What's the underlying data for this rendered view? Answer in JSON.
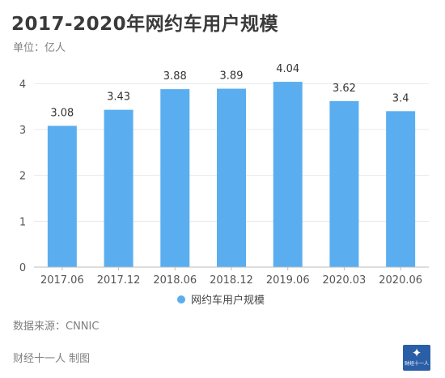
{
  "header": {
    "title": "2017-2020年网约车用户规模",
    "unit": "单位：亿人"
  },
  "footer": {
    "source": "数据来源：CNNIC",
    "credit": "财经十一人 制图",
    "logo_text": "财经十一人"
  },
  "colors": {
    "bar": "#5aaef0",
    "grid": "#e8e8e8",
    "axis": "#bbbbbb"
  },
  "chart_data": {
    "type": "bar",
    "categories": [
      "2017.06",
      "2017.12",
      "2018.06",
      "2018.12",
      "2019.06",
      "2020.03",
      "2020.06"
    ],
    "series": [
      {
        "name": "网约车用户规模",
        "values": [
          3.08,
          3.43,
          3.88,
          3.89,
          4.04,
          3.62,
          3.4
        ]
      }
    ],
    "data_labels": [
      "3.08",
      "3.43",
      "3.88",
      "3.89",
      "4.04",
      "3.62",
      "3.4"
    ],
    "y_ticks": [
      0,
      1,
      2,
      3,
      4
    ],
    "ylim": [
      0,
      4.5
    ],
    "grid": true,
    "legend_position": "bottom"
  }
}
